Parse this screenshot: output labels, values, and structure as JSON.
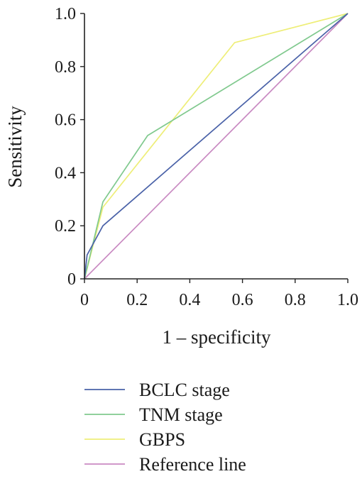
{
  "chart_data": {
    "type": "line",
    "title": "",
    "xlabel": "1 – specificity",
    "ylabel": "Sensitivity",
    "xlim": [
      0,
      1
    ],
    "ylim": [
      0,
      1
    ],
    "x_ticks": [
      "0",
      "0.2",
      "0.4",
      "0.6",
      "0.8",
      "1.0"
    ],
    "y_ticks": [
      "0",
      "0.2",
      "0.4",
      "0.6",
      "0.8",
      "1.0"
    ],
    "grid": false,
    "legend_position": "bottom-center",
    "series": [
      {
        "name": "BCLC stage",
        "color": "#4a62a8",
        "points": [
          [
            0,
            0
          ],
          [
            0.01,
            0.09
          ],
          [
            0.07,
            0.2
          ],
          [
            1.0,
            1.0
          ]
        ]
      },
      {
        "name": "TNM stage",
        "color": "#80c98e",
        "points": [
          [
            0,
            0
          ],
          [
            0.07,
            0.29
          ],
          [
            0.24,
            0.54
          ],
          [
            1.0,
            1.0
          ]
        ]
      },
      {
        "name": "GBPS",
        "color": "#eeee78",
        "points": [
          [
            0,
            0
          ],
          [
            0.07,
            0.27
          ],
          [
            0.57,
            0.89
          ],
          [
            1.0,
            1.0
          ]
        ]
      },
      {
        "name": "Reference line",
        "color": "#c98ac2",
        "points": [
          [
            0,
            0
          ],
          [
            1.0,
            1.0
          ]
        ]
      }
    ]
  }
}
